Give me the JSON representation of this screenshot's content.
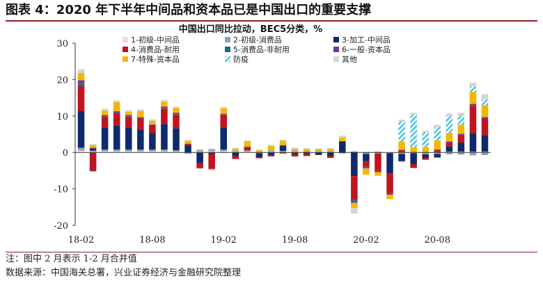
{
  "figure": {
    "title": "图表 4：2020 年下半年中间品和资本品已是中国出口的重要支撑",
    "note": "注：图中 2 月表示 1-2 月合并值",
    "source": "数据来源：中国海关总署，兴业证券经济与金融研究院整理"
  },
  "colors": {
    "accent_rule": "#8f1d24",
    "s1": "#f2dcdc",
    "s2": "#8ea1b5",
    "s3": "#0f2a6b",
    "s4": "#c0141e",
    "s5": "#1c6b8a",
    "s6": "#6f3a9c",
    "s7": "#f5b800",
    "s8": "#4dc3e8",
    "s9": "#d5d5d5"
  },
  "chart_data": {
    "type": "bar",
    "stacked": true,
    "title": "中国出口同比拉动，BEC5分类，%",
    "xlabel": "",
    "ylabel": "",
    "ylim": [
      -20,
      30
    ],
    "yticks": [
      -20,
      -10,
      0,
      10,
      20,
      30
    ],
    "xticks": [
      "18-02",
      "18-08",
      "19-02",
      "19-08",
      "20-02",
      "20-08"
    ],
    "grid": false,
    "legend_position": "top",
    "categories": [
      "18-02",
      "18-03",
      "18-04",
      "18-05",
      "18-06",
      "18-07",
      "18-08",
      "18-09",
      "18-10",
      "18-11",
      "18-12",
      "19-01",
      "19-02",
      "19-03",
      "19-04",
      "19-05",
      "19-06",
      "19-07",
      "19-08",
      "19-09",
      "19-10",
      "19-11",
      "19-12",
      "20-01",
      "20-02",
      "20-03",
      "20-04",
      "20-05",
      "20-06",
      "20-07",
      "20-08",
      "20-09",
      "20-10",
      "20-11",
      "20-12"
    ],
    "series": [
      {
        "name": "1-初级-中间品",
        "color_key": "s1",
        "values": [
          0.5,
          0.2,
          0.3,
          0.3,
          0.3,
          0.3,
          0.3,
          0.3,
          0.2,
          0,
          0.2,
          0.3,
          0.3,
          0.2,
          0.2,
          0,
          0.2,
          0.1,
          0.2,
          0.1,
          0.1,
          0.1,
          0,
          0,
          0.2,
          0.1,
          0,
          0.1,
          0,
          0,
          0.1,
          0.2,
          0.2,
          0.2,
          0.2
        ]
      },
      {
        "name": "2-初级-消费品",
        "color_key": "s2",
        "values": [
          0.8,
          0.3,
          0.5,
          0.5,
          0.5,
          0.5,
          0.5,
          0.5,
          0.4,
          -0.2,
          0.4,
          0.5,
          0.5,
          0.3,
          0.4,
          -0.2,
          0.4,
          0.3,
          0.3,
          0.3,
          0.2,
          0.3,
          -0.3,
          0.3,
          -0.4,
          -0.3,
          -0.2,
          -0.4,
          -0.2,
          -0.5,
          -0.4,
          -0.5,
          -0.6,
          -0.8,
          -0.7
        ]
      },
      {
        "name": "3-加工-中间品",
        "color_key": "s3",
        "values": [
          10,
          0.5,
          6,
          6.5,
          6,
          5.5,
          4.5,
          7,
          6,
          2,
          -3,
          -0.5,
          6,
          -1,
          0,
          -1,
          -0.7,
          1.5,
          -0.5,
          -0.5,
          -0.7,
          -1,
          3,
          -6.5,
          -2,
          0,
          -5.5,
          -2,
          -3,
          -1,
          -1,
          1.5,
          2.5,
          5,
          4.5
        ]
      },
      {
        "name": "4-消费品-耐用",
        "color_key": "s4",
        "values": [
          7,
          -5,
          3,
          3.5,
          3,
          3,
          2.2,
          4.2,
          3.8,
          0.4,
          -1.3,
          -4,
          3.5,
          -0.8,
          0.7,
          -0.4,
          -0.3,
          -0.3,
          -0.6,
          -0.5,
          0,
          -0.5,
          0,
          -6.5,
          -1.5,
          -4.8,
          -5.5,
          0.5,
          -1,
          -0.5,
          0.5,
          1,
          2,
          7.5,
          4.5
        ]
      },
      {
        "name": "5-消费品-非耐用",
        "color_key": "s5",
        "values": [
          0.5,
          -0.2,
          0.1,
          0.1,
          0.1,
          0.1,
          0,
          0.1,
          0.1,
          0,
          -0.1,
          0,
          -0.1,
          0,
          0,
          0,
          0,
          0,
          0,
          0,
          0,
          0,
          0,
          -0.5,
          -0.3,
          -0.3,
          -0.2,
          -0.1,
          -0.1,
          0,
          0,
          0,
          0,
          0,
          0
        ]
      },
      {
        "name": "6-一般-资本品",
        "color_key": "s6",
        "values": [
          1,
          0.3,
          0.4,
          0.4,
          0.4,
          0.3,
          0.2,
          0.5,
          0.4,
          -0.1,
          0,
          -0.1,
          0.3,
          0,
          0.3,
          0,
          -0.1,
          0.1,
          0,
          0,
          0,
          0,
          0.1,
          -0.3,
          -0.2,
          0.1,
          -0.2,
          0.1,
          0.1,
          0,
          0.2,
          0.3,
          0.4,
          0.6,
          0.5
        ]
      },
      {
        "name": "7-特殊-资本品",
        "color_key": "s7",
        "values": [
          2,
          0.7,
          1.2,
          2.5,
          0.8,
          1.6,
          1,
          1.3,
          1.3,
          0.8,
          0.1,
          -0.2,
          1.5,
          0.5,
          1.4,
          0.6,
          1.2,
          1.2,
          0.5,
          0.5,
          0.6,
          0.6,
          1,
          -1.5,
          -1.7,
          -1,
          -1.2,
          2.3,
          1.3,
          1.5,
          2.5,
          2.4,
          2.5,
          3.3,
          3.3
        ]
      },
      {
        "name": "防疫",
        "color_key": "s8",
        "values": [
          0,
          0,
          0,
          0,
          0,
          0,
          0,
          0,
          0,
          0,
          0,
          0,
          0,
          0,
          0,
          0,
          0,
          0,
          0,
          0,
          0,
          0,
          0,
          0,
          0,
          0,
          0,
          5.5,
          9,
          4,
          3.7,
          4.5,
          2.5,
          1.5,
          1.5
        ]
      },
      {
        "name": "其他",
        "color_key": "s9",
        "values": [
          1,
          0.3,
          0.5,
          0.5,
          0.5,
          0.5,
          0.4,
          0.5,
          0.4,
          0.2,
          0.2,
          0.3,
          0.4,
          0.3,
          0.3,
          0.2,
          0.3,
          0.3,
          0.3,
          0.3,
          0.2,
          0.2,
          0.5,
          -1.5,
          0,
          0,
          0,
          0.5,
          0.5,
          0.5,
          0.6,
          0.8,
          0.8,
          1,
          1.5
        ]
      }
    ]
  }
}
